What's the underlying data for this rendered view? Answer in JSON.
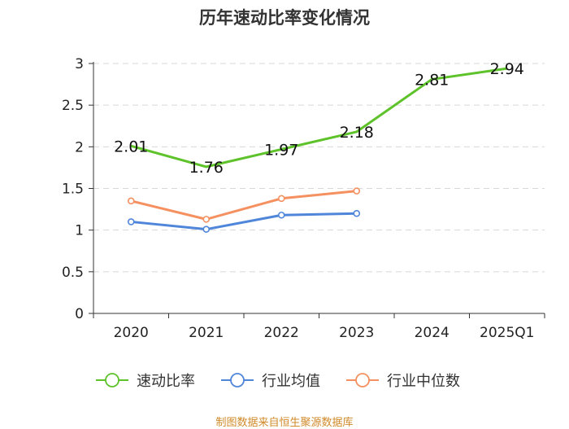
{
  "chart_data": {
    "type": "line",
    "title": "历年速动比率变化情况",
    "categories": [
      "2020",
      "2021",
      "2022",
      "2023",
      "2024",
      "2025Q1"
    ],
    "ylim": [
      0,
      3
    ],
    "yticks": [
      "0",
      "0.5",
      "1",
      "1.5",
      "2",
      "2.5",
      "3"
    ],
    "grid": true,
    "legend_position": "bottom",
    "series": [
      {
        "name": "速动比率",
        "color": "#5ec22a",
        "values": [
          2.01,
          1.76,
          1.97,
          2.18,
          2.81,
          2.94
        ],
        "labels": [
          "2.01",
          "1.76",
          "1.97",
          "2.18",
          "2.81",
          "2.94"
        ],
        "show_labels": true,
        "markers": false
      },
      {
        "name": "行业均值",
        "color": "#4f86d9",
        "values": [
          1.1,
          1.01,
          1.18,
          1.2,
          null,
          null
        ],
        "show_labels": false,
        "markers": true
      },
      {
        "name": "行业中位数",
        "color": "#f59060",
        "values": [
          1.35,
          1.13,
          1.38,
          1.47,
          null,
          null
        ],
        "show_labels": false,
        "markers": true
      }
    ],
    "source": "制图数据来自恒生聚源数据库"
  }
}
